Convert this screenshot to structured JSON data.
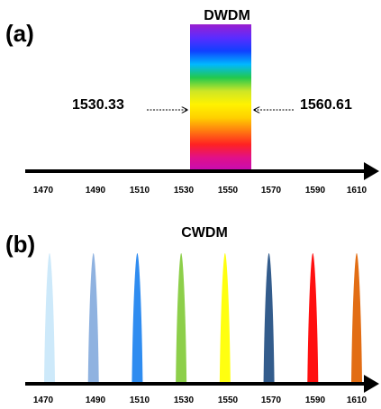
{
  "panel_a": {
    "letter": "(a)",
    "title": "DWDM",
    "left_wavelength": "1530.33",
    "right_wavelength": "1560.61",
    "axis_ticks": [
      "1470",
      "1490",
      "1510",
      "1530",
      "1550",
      "1570",
      "1590",
      "1610"
    ],
    "spectrum_colors": [
      "#9b1fcf",
      "#5b2cff",
      "#1040ff",
      "#00b8ff",
      "#22c94d",
      "#cde626",
      "#fff200",
      "#ffd000",
      "#ff7a10",
      "#ff2222",
      "#e0108a",
      "#c60cb5"
    ]
  },
  "panel_b": {
    "letter": "(b)",
    "title": "CWDM",
    "axis_ticks": [
      "1470",
      "1490",
      "1510",
      "1530",
      "1550",
      "1570",
      "1590",
      "1610"
    ],
    "channels": [
      {
        "wavelength": 1470,
        "color": "#cde9fa"
      },
      {
        "wavelength": 1490,
        "color": "#8fb2e0"
      },
      {
        "wavelength": 1510,
        "color": "#2f8cf0"
      },
      {
        "wavelength": 1530,
        "color": "#8dcf4a"
      },
      {
        "wavelength": 1550,
        "color": "#ffff10"
      },
      {
        "wavelength": 1570,
        "color": "#335c8c"
      },
      {
        "wavelength": 1590,
        "color": "#ff1010"
      },
      {
        "wavelength": 1610,
        "color": "#e26d14"
      }
    ]
  },
  "axis_color": "#000000"
}
